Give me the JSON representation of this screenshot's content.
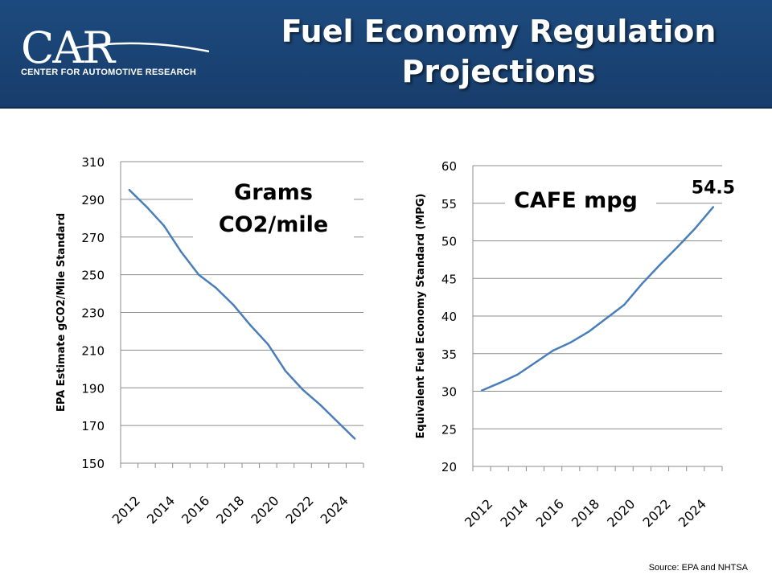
{
  "header": {
    "title_line1": "Fuel Economy Regulation",
    "title_line2": "Projections",
    "logo_big": "CAR",
    "logo_sub": "CENTER FOR AUTOMOTIVE RESEARCH",
    "colors": {
      "background": "#1d4a7e",
      "text": "#ffffff"
    }
  },
  "source": "Source: EPA and NHTSA",
  "chart_data": [
    {
      "type": "line",
      "title_lines": [
        "Grams",
        "CO2/mile"
      ],
      "xlabel": "",
      "ylabel": "EPA Estimate gCO2/Mile Standard",
      "ylim": [
        150,
        310
      ],
      "y_ticks": [
        150,
        170,
        190,
        210,
        230,
        250,
        270,
        290,
        310
      ],
      "x_tick_labels": [
        "2012",
        "2014",
        "2016",
        "2018",
        "2020",
        "2022",
        "2024"
      ],
      "x": [
        2012,
        2013,
        2014,
        2015,
        2016,
        2017,
        2018,
        2019,
        2020,
        2021,
        2022,
        2023,
        2024,
        2025
      ],
      "series": [
        {
          "values": [
            295,
            286,
            276,
            262,
            250,
            243,
            234,
            223,
            213,
            199,
            189,
            181,
            172,
            163
          ],
          "color": "#4a7ebb"
        }
      ],
      "grid": true
    },
    {
      "type": "line",
      "title_lines": [
        "CAFE mpg"
      ],
      "xlabel": "",
      "ylabel": "Equivalent Fuel Economy Standard (MPG)",
      "ylim": [
        20,
        60
      ],
      "y_ticks": [
        20,
        25,
        30,
        35,
        40,
        45,
        50,
        55,
        60
      ],
      "x_tick_labels": [
        "2012",
        "2014",
        "2016",
        "2018",
        "2020",
        "2022",
        "2024"
      ],
      "x": [
        2012,
        2013,
        2014,
        2015,
        2016,
        2017,
        2018,
        2019,
        2020,
        2021,
        2022,
        2023,
        2024,
        2025
      ],
      "series": [
        {
          "values": [
            30.1,
            31.1,
            32.2,
            33.8,
            35.4,
            36.5,
            37.9,
            39.7,
            41.5,
            44.3,
            46.8,
            49.2,
            51.7,
            54.5
          ],
          "color": "#4a7ebb"
        }
      ],
      "annotations": [
        {
          "text": "54.5",
          "x": 2025,
          "y": 54.5
        }
      ],
      "grid": true
    }
  ]
}
